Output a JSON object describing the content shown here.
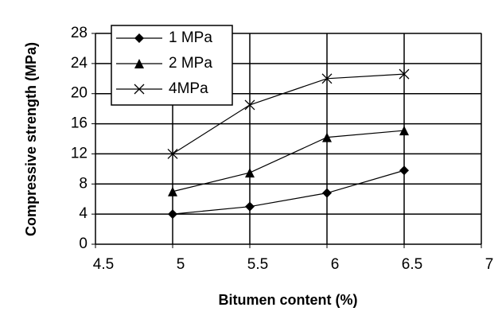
{
  "chart_data": {
    "type": "line",
    "x": [
      5,
      5.5,
      6,
      6.5
    ],
    "series": [
      {
        "name": "1 MPa",
        "color": "#000000",
        "marker": "diamond",
        "values": [
          4,
          5,
          6.8,
          9.8
        ]
      },
      {
        "name": "2 MPa",
        "color": "#000000",
        "marker": "triangle",
        "values": [
          7,
          9.5,
          14.2,
          15.1
        ]
      },
      {
        "name": "4MPa",
        "color": "#000000",
        "marker": "x",
        "values": [
          12,
          18.5,
          22,
          22.6
        ]
      }
    ],
    "xlabel": "Bitumen content (%)",
    "ylabel": "Compressive strength (MPa)",
    "xlim": [
      4.5,
      7
    ],
    "xticks": [
      4.5,
      5,
      5.5,
      6,
      6.5,
      7
    ],
    "ylim": [
      0,
      28
    ],
    "yticks": [
      0,
      4,
      8,
      12,
      16,
      20,
      24,
      28
    ],
    "grid": true,
    "legend": "upper left"
  }
}
